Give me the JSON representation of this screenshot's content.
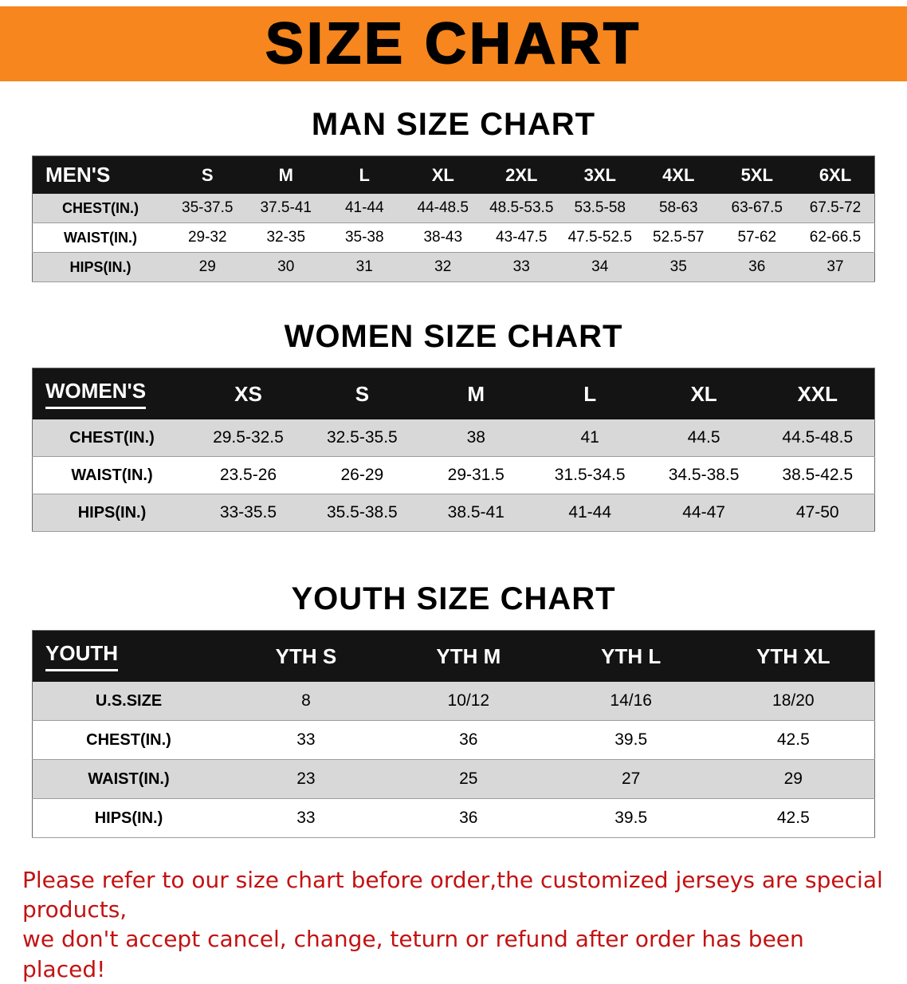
{
  "banner": {
    "title": "SIZE CHART",
    "bg_color": "#f6861d"
  },
  "sections": [
    {
      "id": "men",
      "heading": "MAN SIZE CHART",
      "corner": "MEN'S",
      "columns": [
        "S",
        "M",
        "L",
        "XL",
        "2XL",
        "3XL",
        "4XL",
        "5XL",
        "6XL"
      ],
      "rows": [
        {
          "label": "CHEST(IN.)",
          "values": [
            "35-37.5",
            "37.5-41",
            "41-44",
            "44-48.5",
            "48.5-53.5",
            "53.5-58",
            "58-63",
            "63-67.5",
            "67.5-72"
          ]
        },
        {
          "label": "WAIST(IN.)",
          "values": [
            "29-32",
            "32-35",
            "35-38",
            "38-43",
            "43-47.5",
            "47.5-52.5",
            "52.5-57",
            "57-62",
            "62-66.5"
          ]
        },
        {
          "label": "HIPS(IN.)",
          "values": [
            "29",
            "30",
            "31",
            "32",
            "33",
            "34",
            "35",
            "36",
            "37"
          ]
        }
      ]
    },
    {
      "id": "women",
      "heading": "WOMEN SIZE CHART",
      "corner": "WOMEN'S",
      "columns": [
        "XS",
        "S",
        "M",
        "L",
        "XL",
        "XXL"
      ],
      "rows": [
        {
          "label": "CHEST(IN.)",
          "values": [
            "29.5-32.5",
            "32.5-35.5",
            "38",
            "41",
            "44.5",
            "44.5-48.5"
          ]
        },
        {
          "label": "WAIST(IN.)",
          "values": [
            "23.5-26",
            "26-29",
            "29-31.5",
            "31.5-34.5",
            "34.5-38.5",
            "38.5-42.5"
          ]
        },
        {
          "label": "HIPS(IN.)",
          "values": [
            "33-35.5",
            "35.5-38.5",
            "38.5-41",
            "41-44",
            "44-47",
            "47-50"
          ]
        }
      ]
    },
    {
      "id": "youth",
      "heading": "YOUTH SIZE CHART",
      "corner": "YOUTH",
      "columns": [
        "YTH S",
        "YTH M",
        "YTH L",
        "YTH XL"
      ],
      "rows": [
        {
          "label": "U.S.SIZE",
          "values": [
            "8",
            "10/12",
            "14/16",
            "18/20"
          ]
        },
        {
          "label": "CHEST(IN.)",
          "values": [
            "33",
            "36",
            "39.5",
            "42.5"
          ]
        },
        {
          "label": "WAIST(IN.)",
          "values": [
            "23",
            "25",
            "27",
            "29"
          ]
        },
        {
          "label": "HIPS(IN.)",
          "values": [
            "33",
            "36",
            "39.5",
            "42.5"
          ]
        }
      ]
    }
  ],
  "disclaimer": {
    "line1": "Please refer to our size chart before order,the customized jerseys are special products,",
    "line2": "we don't accept cancel, change, teturn or refund after order has been placed!",
    "color": "#c31212"
  }
}
